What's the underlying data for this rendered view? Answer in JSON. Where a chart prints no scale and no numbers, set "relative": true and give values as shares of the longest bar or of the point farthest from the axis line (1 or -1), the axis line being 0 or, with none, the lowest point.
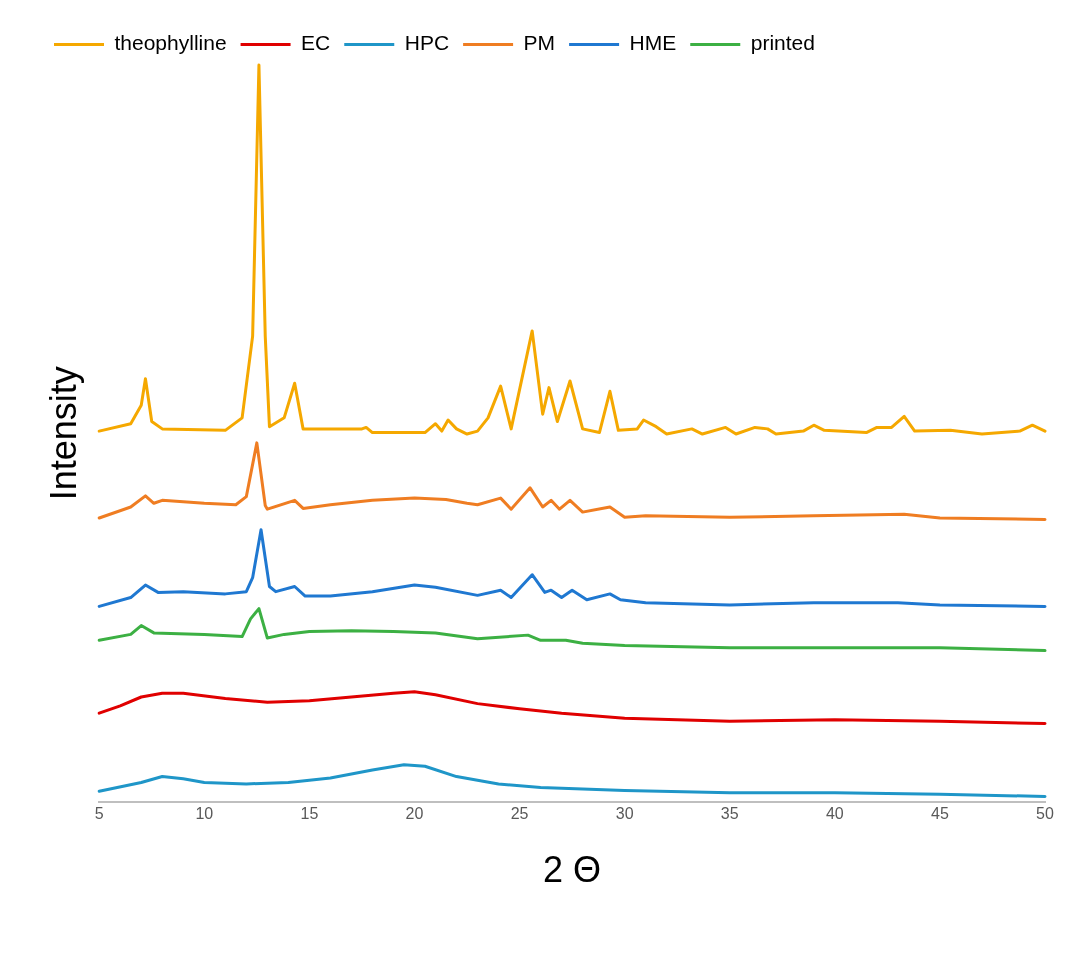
{
  "chart_data": {
    "type": "line",
    "xlabel": "2 Θ",
    "ylabel": "Intensity",
    "relative": true,
    "legend": "top left",
    "grid": false,
    "marker": "none",
    "line_style": "solid",
    "tick_labels": "x",
    "xlim": [
      5,
      50
    ],
    "xticks": [
      5,
      10,
      15,
      20,
      25,
      30,
      35,
      40,
      45,
      50
    ],
    "series": [
      {
        "name": "theophylline",
        "color": "#f5a800",
        "x": [
          5,
          6.5,
          7,
          7.2,
          7.5,
          8,
          11,
          11.8,
          12.3,
          12.6,
          12.9,
          13.1,
          13.8,
          14.3,
          14.7,
          17.5,
          17.7,
          18,
          20.5,
          21,
          21.3,
          21.6,
          22,
          22.5,
          23,
          23.5,
          24.1,
          24.6,
          25.6,
          26.1,
          26.4,
          26.8,
          27.4,
          28,
          28.8,
          29.3,
          29.7,
          30.6,
          30.9,
          31.5,
          32,
          33.2,
          33.7,
          34.8,
          35.3,
          36.2,
          36.8,
          37.2,
          38.5,
          39,
          39.5,
          41.5,
          42,
          42.7,
          43.3,
          43.8,
          45.5,
          47,
          48.8,
          49.4,
          50
        ],
        "values": [
          0.503,
          0.513,
          0.538,
          0.574,
          0.516,
          0.506,
          0.504,
          0.521,
          0.632,
          1,
          0.632,
          0.509,
          0.521,
          0.568,
          0.506,
          0.506,
          0.508,
          0.501,
          0.501,
          0.513,
          0.503,
          0.518,
          0.506,
          0.499,
          0.503,
          0.521,
          0.564,
          0.506,
          0.639,
          0.526,
          0.562,
          0.516,
          0.571,
          0.506,
          0.501,
          0.557,
          0.504,
          0.506,
          0.518,
          0.509,
          0.499,
          0.506,
          0.499,
          0.508,
          0.499,
          0.508,
          0.506,
          0.499,
          0.503,
          0.511,
          0.504,
          0.501,
          0.508,
          0.508,
          0.523,
          0.503,
          0.504,
          0.499,
          0.503,
          0.511,
          0.503
        ]
      },
      {
        "name": "EC",
        "color": "#e00000",
        "x": [
          5,
          6,
          7,
          8,
          9,
          11,
          13,
          15,
          17,
          19,
          20,
          21,
          23,
          25,
          27,
          30,
          35,
          40,
          45,
          50
        ],
        "values": [
          0.12,
          0.13,
          0.142,
          0.147,
          0.147,
          0.14,
          0.135,
          0.137,
          0.142,
          0.147,
          0.149,
          0.145,
          0.133,
          0.126,
          0.12,
          0.113,
          0.109,
          0.111,
          0.109,
          0.106
        ]
      },
      {
        "name": "HPC",
        "color": "#1f96c8",
        "x": [
          5,
          7,
          8,
          9,
          10,
          12,
          14,
          16,
          18,
          19.5,
          20.5,
          22,
          24,
          26,
          30,
          35,
          40,
          45,
          50
        ],
        "values": [
          0.014,
          0.026,
          0.034,
          0.031,
          0.026,
          0.024,
          0.026,
          0.032,
          0.043,
          0.05,
          0.048,
          0.034,
          0.024,
          0.019,
          0.015,
          0.012,
          0.012,
          0.01,
          0.007
        ]
      },
      {
        "name": "PM",
        "color": "#ef7d22",
        "x": [
          5,
          6.5,
          7.2,
          7.6,
          8,
          10,
          11.5,
          12,
          12.5,
          12.9,
          13,
          14.3,
          14.7,
          16,
          18,
          20,
          21.5,
          22.5,
          23,
          24.1,
          24.6,
          25.5,
          26.1,
          26.5,
          26.9,
          27.4,
          28,
          29.3,
          30,
          31,
          35,
          39,
          43.3,
          45,
          50
        ],
        "values": [
          0.385,
          0.4,
          0.415,
          0.405,
          0.409,
          0.405,
          0.403,
          0.414,
          0.487,
          0.402,
          0.397,
          0.409,
          0.398,
          0.403,
          0.409,
          0.412,
          0.41,
          0.405,
          0.403,
          0.412,
          0.397,
          0.426,
          0.4,
          0.409,
          0.397,
          0.409,
          0.393,
          0.4,
          0.386,
          0.388,
          0.386,
          0.388,
          0.39,
          0.385,
          0.383
        ]
      },
      {
        "name": "HME",
        "color": "#1f78d1",
        "x": [
          5,
          6.5,
          7.2,
          7.8,
          9,
          11,
          12,
          12.3,
          12.7,
          13.1,
          13.4,
          14.3,
          14.8,
          16,
          18,
          20,
          21,
          23,
          24.1,
          24.6,
          25.6,
          26.2,
          26.5,
          27,
          27.5,
          28.2,
          29.3,
          29.8,
          31,
          35,
          39,
          43,
          45,
          50
        ],
        "values": [
          0.265,
          0.277,
          0.294,
          0.284,
          0.285,
          0.282,
          0.285,
          0.304,
          0.369,
          0.292,
          0.285,
          0.292,
          0.279,
          0.279,
          0.285,
          0.294,
          0.291,
          0.28,
          0.287,
          0.277,
          0.308,
          0.284,
          0.287,
          0.277,
          0.287,
          0.274,
          0.282,
          0.274,
          0.27,
          0.267,
          0.27,
          0.27,
          0.267,
          0.265
        ]
      },
      {
        "name": "printed",
        "color": "#3cb043",
        "x": [
          5,
          6.5,
          7,
          7.6,
          10,
          11.8,
          12.2,
          12.6,
          13,
          13.8,
          15,
          17,
          19,
          21,
          23,
          25.4,
          26,
          27.2,
          28,
          30,
          35,
          40,
          45,
          50
        ],
        "values": [
          0.219,
          0.227,
          0.239,
          0.229,
          0.227,
          0.224,
          0.248,
          0.262,
          0.222,
          0.227,
          0.231,
          0.232,
          0.231,
          0.229,
          0.221,
          0.226,
          0.219,
          0.219,
          0.215,
          0.212,
          0.209,
          0.209,
          0.209,
          0.205
        ]
      }
    ]
  }
}
